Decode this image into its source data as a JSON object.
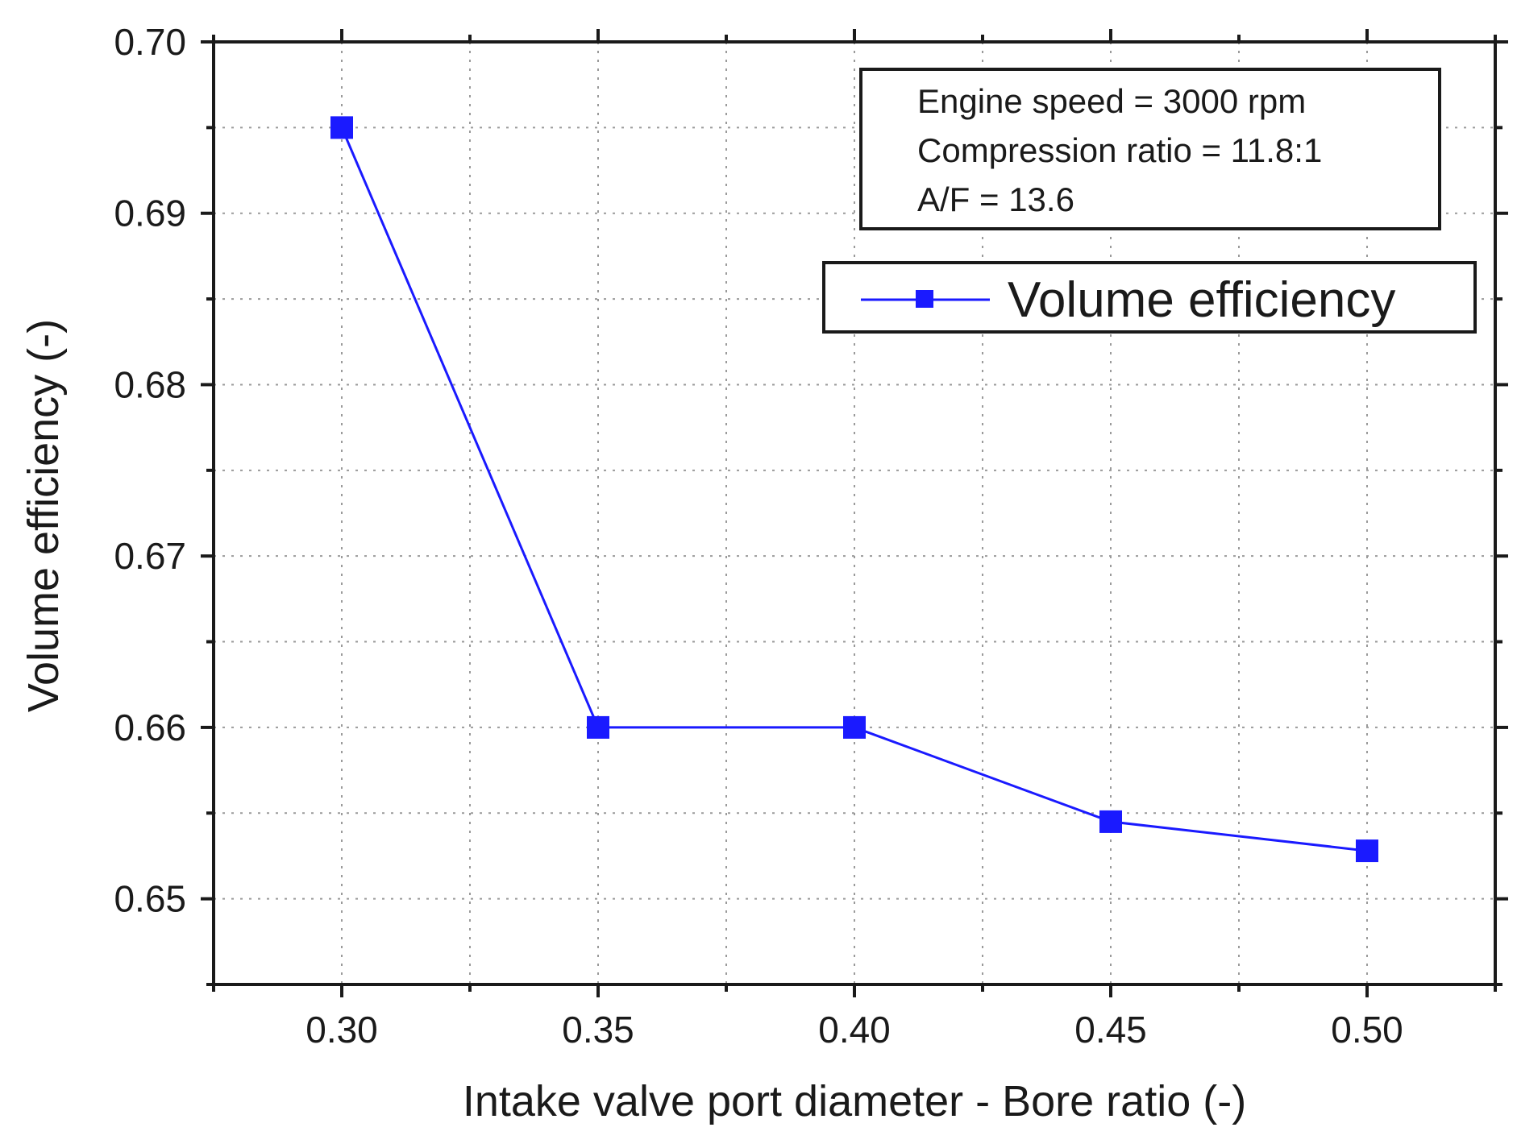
{
  "chart_data": {
    "type": "line",
    "xlabel": "Intake valve port diameter - Bore ratio (-)",
    "ylabel": "Volume efficiency (-)",
    "xlim": [
      0.275,
      0.525
    ],
    "ylim": [
      0.645,
      0.7
    ],
    "x_ticks": [
      0.3,
      0.35,
      0.4,
      0.45,
      0.5
    ],
    "x_tick_labels": [
      "0.30",
      "0.35",
      "0.40",
      "0.45",
      "0.50"
    ],
    "y_ticks": [
      0.65,
      0.66,
      0.67,
      0.68,
      0.69,
      0.7
    ],
    "y_tick_labels": [
      "0.65",
      "0.66",
      "0.67",
      "0.68",
      "0.69",
      "0.70"
    ],
    "grid": true,
    "series": [
      {
        "name": "Volume efficiency",
        "color": "#1a1aff",
        "marker": "square",
        "x": [
          0.3,
          0.35,
          0.4,
          0.45,
          0.5
        ],
        "y": [
          0.695,
          0.66,
          0.66,
          0.6545,
          0.6528
        ]
      }
    ],
    "annotation": {
      "lines": [
        "Engine speed = 3000 rpm",
        "Compression ratio = 11.8:1",
        "A/F = 13.6"
      ]
    },
    "legend": {
      "position": "top-right",
      "entries": [
        "Volume efficiency"
      ]
    }
  }
}
